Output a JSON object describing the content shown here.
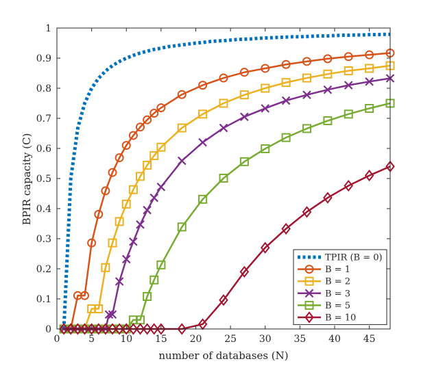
{
  "chart_data": {
    "type": "line",
    "title": "",
    "xlabel": "number of databases (N)",
    "ylabel": "BPIR capacity (C)",
    "xlim": [
      0,
      48
    ],
    "ylim": [
      0,
      1
    ],
    "xticks": [
      "0",
      "5",
      "10",
      "15",
      "20",
      "25",
      "30",
      "35",
      "40",
      "45"
    ],
    "xtick_values": [
      0,
      5,
      10,
      15,
      20,
      25,
      30,
      35,
      40,
      45
    ],
    "yticks": [
      "0",
      "0.1",
      "0.2",
      "0.3",
      "0.4",
      "0.5",
      "0.6",
      "0.7",
      "0.8",
      "0.9",
      "1"
    ],
    "ytick_values": [
      0,
      0.1,
      0.2,
      0.3,
      0.4,
      0.5,
      0.6,
      0.7,
      0.8,
      0.9,
      1
    ],
    "grid": false,
    "legend_position": "bottom-right",
    "series": [
      {
        "name": "TPIR (B = 0)",
        "color": "#0072BD",
        "style": "dotted",
        "marker": "none",
        "x": [
          1,
          2,
          3,
          4,
          5,
          6,
          7,
          8,
          9,
          10,
          11,
          12,
          13,
          14,
          15,
          16,
          17,
          18,
          19,
          20,
          21,
          22,
          23,
          24,
          25,
          26,
          27,
          28,
          29,
          30,
          31,
          32,
          33,
          34,
          35,
          36,
          37,
          38,
          39,
          40,
          41,
          42,
          43,
          44,
          45,
          46,
          47,
          48
        ],
        "y": [
          0.0,
          0.5,
          0.667,
          0.75,
          0.8,
          0.833,
          0.857,
          0.875,
          0.889,
          0.9,
          0.909,
          0.917,
          0.923,
          0.929,
          0.933,
          0.938,
          0.941,
          0.944,
          0.947,
          0.95,
          0.952,
          0.955,
          0.957,
          0.958,
          0.96,
          0.962,
          0.963,
          0.964,
          0.966,
          0.967,
          0.968,
          0.969,
          0.97,
          0.971,
          0.971,
          0.972,
          0.973,
          0.974,
          0.974,
          0.975,
          0.976,
          0.976,
          0.977,
          0.977,
          0.978,
          0.978,
          0.979,
          0.979
        ]
      },
      {
        "name": "B = 1",
        "color": "#D95319",
        "marker": "circle",
        "x": [
          1,
          2,
          3,
          4,
          5,
          6,
          7,
          8,
          9,
          10,
          11,
          12,
          13,
          14,
          15,
          18,
          21,
          24,
          27,
          30,
          33,
          36,
          39,
          42,
          45,
          48
        ],
        "y": [
          0,
          0,
          0.111,
          0.111,
          0.286,
          0.381,
          0.459,
          0.52,
          0.569,
          0.61,
          0.643,
          0.671,
          0.695,
          0.717,
          0.735,
          0.779,
          0.81,
          0.834,
          0.853,
          0.866,
          0.879,
          0.889,
          0.898,
          0.905,
          0.911,
          0.917
        ]
      },
      {
        "name": "B = 2",
        "color": "#EDB120",
        "marker": "square",
        "x": [
          1,
          2,
          3,
          4,
          5,
          6,
          7,
          8,
          9,
          10,
          11,
          12,
          13,
          14,
          15,
          18,
          21,
          24,
          27,
          30,
          33,
          36,
          39,
          42,
          45,
          48
        ],
        "y": [
          0,
          0,
          0,
          0,
          0.067,
          0.067,
          0.204,
          0.286,
          0.357,
          0.415,
          0.463,
          0.507,
          0.544,
          0.576,
          0.604,
          0.668,
          0.714,
          0.75,
          0.778,
          0.8,
          0.819,
          0.834,
          0.847,
          0.858,
          0.866,
          0.875
        ]
      },
      {
        "name": "B = 3",
        "color": "#7E2F8E",
        "marker": "x",
        "x": [
          1,
          2,
          3,
          4,
          5,
          6,
          7,
          7.5,
          8,
          9,
          10,
          11,
          12,
          13,
          14,
          15,
          18,
          21,
          24,
          27,
          30,
          33,
          36,
          39,
          42,
          45,
          48
        ],
        "y": [
          0,
          0,
          0,
          0,
          0,
          0,
          0,
          0.048,
          0.048,
          0.158,
          0.232,
          0.29,
          0.347,
          0.395,
          0.436,
          0.472,
          0.559,
          0.62,
          0.668,
          0.705,
          0.733,
          0.759,
          0.778,
          0.795,
          0.81,
          0.822,
          0.833
        ]
      },
      {
        "name": "B = 5",
        "color": "#77AC30",
        "marker": "square",
        "x": [
          1,
          2,
          3,
          4,
          5,
          6,
          7,
          8,
          9,
          10,
          11,
          12,
          13,
          14,
          15,
          18,
          21,
          24,
          27,
          30,
          33,
          36,
          39,
          42,
          45,
          48
        ],
        "y": [
          0,
          0,
          0,
          0,
          0,
          0,
          0,
          0,
          0,
          0,
          0.03,
          0.03,
          0.108,
          0.163,
          0.213,
          0.339,
          0.431,
          0.501,
          0.556,
          0.599,
          0.636,
          0.666,
          0.692,
          0.714,
          0.733,
          0.75
        ]
      },
      {
        "name": "B = 10",
        "color": "#A2142F",
        "marker": "diamond",
        "x": [
          1,
          2,
          3,
          4,
          5,
          6,
          7,
          8,
          9,
          10,
          11,
          12,
          13,
          14,
          15,
          18,
          21,
          24,
          27,
          30,
          33,
          36,
          39,
          42,
          45,
          48
        ],
        "y": [
          0,
          0,
          0,
          0,
          0,
          0,
          0,
          0,
          0,
          0,
          0,
          0,
          0,
          0,
          0,
          0,
          0.016,
          0.096,
          0.19,
          0.27,
          0.333,
          0.389,
          0.436,
          0.476,
          0.51,
          0.54
        ]
      }
    ]
  }
}
